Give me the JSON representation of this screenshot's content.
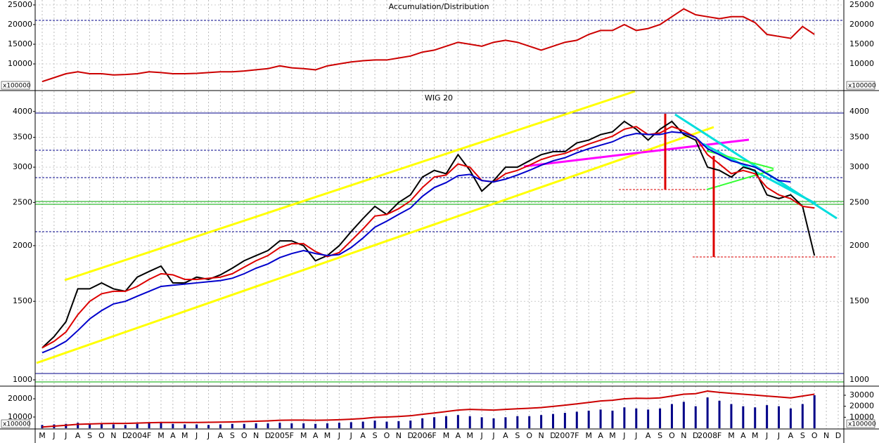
{
  "chart_data": [
    {
      "type": "line",
      "title": "Accumulation/Distribution",
      "unit_label": "x100000",
      "ylim": [
        3400,
        26250
      ],
      "yticks": [
        10000,
        15000,
        20000,
        25000
      ],
      "grid": true,
      "series": [
        {
          "color": "#cc0000",
          "values": [
            5500,
            6500,
            7500,
            8000,
            7500,
            7500,
            7200,
            7300,
            7500,
            8000,
            7800,
            7500,
            7500,
            7600,
            7800,
            8000,
            8000,
            8200,
            8500,
            8800,
            9500,
            9000,
            8800,
            8500,
            9500,
            10000,
            10500,
            10800,
            11000,
            11000,
            11500,
            12000,
            13000,
            13500,
            14500,
            15500,
            15000,
            14500,
            15500,
            16000,
            15500,
            14500,
            13500,
            14500,
            15500,
            16000,
            17500,
            18500,
            18500,
            20000,
            18500,
            19000,
            20000,
            22000,
            24000,
            22500,
            22000,
            21500,
            22000,
            22000,
            20500,
            17500,
            17000,
            16500,
            19500,
            17500,
            null,
            null
          ]
        }
      ]
    },
    {
      "type": "line",
      "title": "WIG 20",
      "log_scale": true,
      "ylim": [
        975,
        4440
      ],
      "yticks": [
        1000,
        1500,
        2000,
        2500,
        3000,
        3500,
        4000
      ],
      "grid": true,
      "series": [
        {
          "color": "#000000",
          "values": [
            1180,
            1250,
            1350,
            1600,
            1600,
            1650,
            1600,
            1580,
            1700,
            1750,
            1800,
            1650,
            1650,
            1700,
            1680,
            1720,
            1780,
            1850,
            1900,
            1950,
            2050,
            2050,
            2000,
            1850,
            1900,
            2000,
            2150,
            2300,
            2450,
            2350,
            2500,
            2600,
            2850,
            2950,
            2900,
            3200,
            2950,
            2650,
            2800,
            3000,
            3000,
            3100,
            3200,
            3250,
            3250,
            3400,
            3450,
            3550,
            3600,
            3800,
            3650,
            3450,
            3650,
            3800,
            3550,
            3450,
            3000,
            2950,
            2850,
            3000,
            2950,
            2600,
            2550,
            2600,
            2450,
            1900,
            null,
            null
          ]
        },
        {
          "color": "#dd0000",
          "values": [
            1180,
            1220,
            1280,
            1400,
            1500,
            1560,
            1580,
            1580,
            1620,
            1680,
            1730,
            1720,
            1680,
            1680,
            1690,
            1700,
            1730,
            1790,
            1850,
            1900,
            1980,
            2020,
            2020,
            1940,
            1890,
            1930,
            2050,
            2180,
            2330,
            2350,
            2420,
            2520,
            2700,
            2850,
            2880,
            3050,
            3000,
            2800,
            2780,
            2900,
            2950,
            3030,
            3120,
            3180,
            3220,
            3300,
            3380,
            3450,
            3520,
            3650,
            3700,
            3550,
            3580,
            3700,
            3620,
            3500,
            3200,
            3050,
            2900,
            2950,
            2900,
            2700,
            2600,
            2550,
            2450,
            2430,
            null,
            null
          ]
        },
        {
          "color": "#0000cc",
          "values": [
            1150,
            1180,
            1220,
            1290,
            1370,
            1430,
            1480,
            1500,
            1540,
            1580,
            1620,
            1630,
            1640,
            1650,
            1660,
            1670,
            1690,
            1730,
            1780,
            1820,
            1880,
            1920,
            1950,
            1920,
            1900,
            1910,
            1980,
            2080,
            2200,
            2270,
            2350,
            2430,
            2580,
            2700,
            2770,
            2870,
            2890,
            2800,
            2780,
            2820,
            2880,
            2950,
            3030,
            3100,
            3150,
            3230,
            3300,
            3360,
            3420,
            3520,
            3570,
            3550,
            3550,
            3600,
            3580,
            3500,
            3300,
            3200,
            3100,
            3050,
            3000,
            2900,
            2800,
            2780,
            null,
            null,
            null,
            null
          ]
        }
      ]
    },
    {
      "type": "bar",
      "unit_label": "x100000",
      "categories": [
        "M",
        "J",
        "J",
        "A",
        "S",
        "O",
        "N",
        "D",
        "2004",
        "F",
        "M",
        "A",
        "M",
        "J",
        "J",
        "A",
        "S",
        "O",
        "N",
        "D",
        "2005",
        "F",
        "M",
        "A",
        "M",
        "J",
        "J",
        "A",
        "S",
        "O",
        "N",
        "D",
        "2006",
        "F",
        "M",
        "A",
        "M",
        "J",
        "J",
        "A",
        "S",
        "O",
        "N",
        "D",
        "2007",
        "F",
        "M",
        "A",
        "M",
        "J",
        "J",
        "A",
        "S",
        "O",
        "N",
        "D",
        "2008",
        "F",
        "M",
        "A",
        "M",
        "J",
        "J",
        "A",
        "S",
        "O",
        "N",
        "D"
      ],
      "ylim": [
        3850,
        26150
      ],
      "yticks": [
        10000,
        20000
      ],
      "y2lim": [
        0,
        37000
      ],
      "y2ticks": [
        10000,
        20000,
        30000
      ],
      "series": [
        {
          "type": "bar",
          "axis": "y2",
          "color": "#000088",
          "values": [
            3000,
            3500,
            4000,
            5000,
            4500,
            4000,
            3500,
            3000,
            4000,
            4500,
            5000,
            4000,
            3500,
            3500,
            3000,
            3500,
            4000,
            4000,
            4500,
            4500,
            5000,
            4500,
            4500,
            4000,
            4500,
            5000,
            5500,
            6000,
            7000,
            6000,
            6500,
            7000,
            9000,
            10000,
            11000,
            12000,
            11000,
            10000,
            9000,
            10000,
            11000,
            11000,
            12000,
            13000,
            14000,
            15000,
            16000,
            17000,
            16000,
            19000,
            18000,
            17000,
            18000,
            22000,
            24000,
            20000,
            28000,
            25000,
            22000,
            20000,
            19000,
            21000,
            20000,
            18000,
            22000,
            30000,
            null,
            null
          ]
        },
        {
          "type": "line",
          "color": "#cc0000",
          "values": [
            4500,
            5000,
            5500,
            6000,
            6200,
            6400,
            6500,
            6500,
            6700,
            6900,
            7000,
            7000,
            7000,
            7000,
            7100,
            7200,
            7300,
            7500,
            7700,
            7900,
            8200,
            8300,
            8300,
            8200,
            8300,
            8500,
            8800,
            9200,
            9800,
            10000,
            10300,
            10700,
            11500,
            12200,
            13000,
            13800,
            14200,
            14000,
            13800,
            14200,
            14500,
            14800,
            15200,
            15800,
            16500,
            17200,
            18000,
            18800,
            19200,
            20000,
            20300,
            20200,
            20500,
            21500,
            22500,
            22800,
            24200,
            23500,
            23000,
            22500,
            22000,
            21500,
            21000,
            20500,
            21500,
            22500,
            null,
            null
          ]
        }
      ]
    }
  ]
}
